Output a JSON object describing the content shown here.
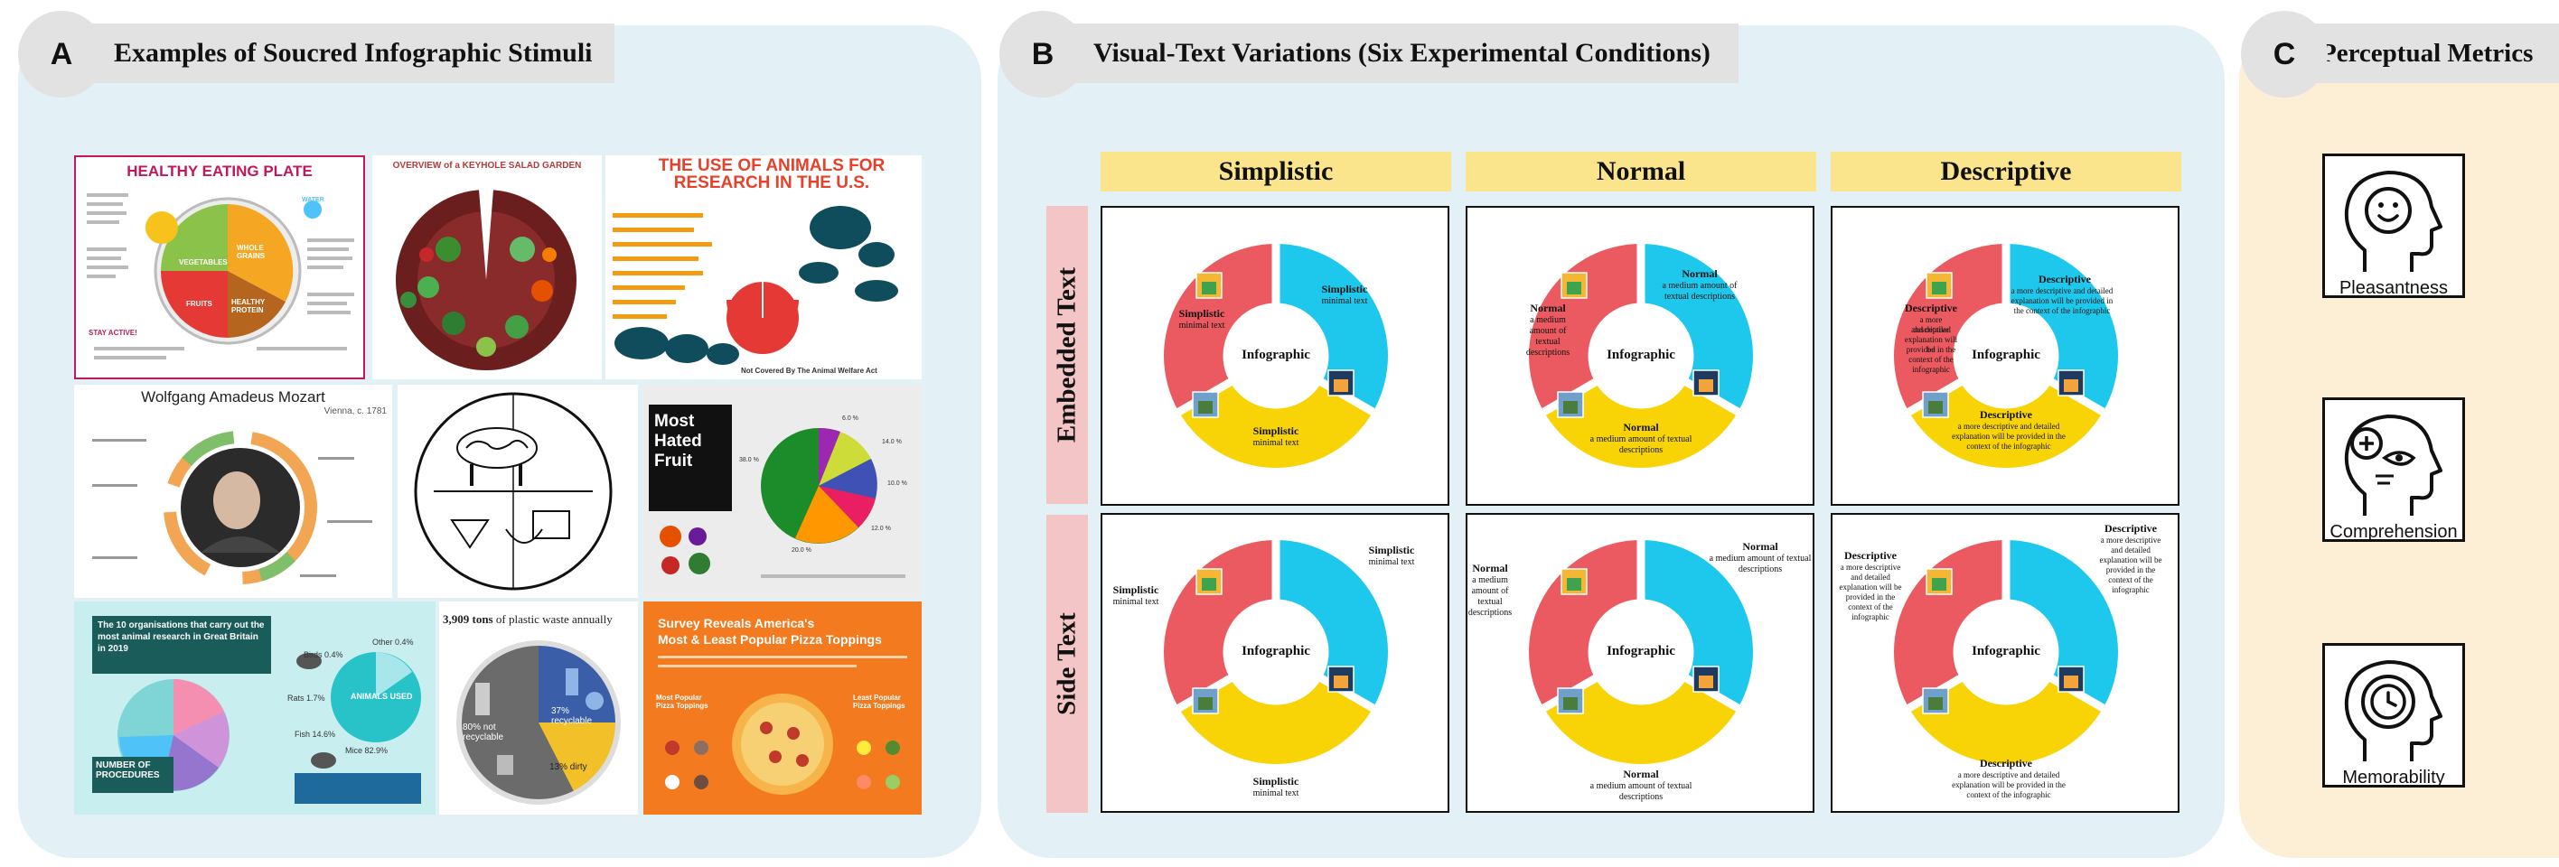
{
  "panel_a": {
    "letter": "A",
    "title": "Examples of Soucred Infographic Stimuli",
    "thumbs": {
      "eating": {
        "title": "HEALTHY EATING PLATE",
        "water": "WATER",
        "veg": "VEGETABLES",
        "grains": "WHOLE GRAINS",
        "fruits": "FRUITS",
        "protein": "HEALTHY PROTEIN",
        "stay_active": "STAY ACTIVE!"
      },
      "salad": {
        "title": "OVERVIEW of a KEYHOLE SALAD GARDEN"
      },
      "animals": {
        "title": "THE USE OF ANIMALS FOR RESEARCH IN THE U.S.",
        "footer": "Not Covered By The Animal Welfare Act"
      },
      "mozart": {
        "title": "Wolfgang Amadeus Mozart",
        "subtitle": "Vienna, c. 1781"
      },
      "fruit": {
        "title1": "Most",
        "title2": "Hated",
        "title3": "Fruit",
        "v1": "6.0 %",
        "v2": "14.0 %",
        "v3": "10.0 %",
        "v4": "12.0 %",
        "v5": "20.0 %",
        "v6": "38.0 %"
      },
      "orgs": {
        "title": "The 10 organisations that carry out the most animal research in Great Britain in 2019",
        "badge": "ANIMALS USED",
        "procedures": "NUMBER OF PROCEDURES",
        "mice": "Mice 82.9%",
        "fish": "Fish 14.6%",
        "rats": "Rats 1.7%",
        "birds": "Birds 0.4%",
        "other": "Other 0.4%"
      },
      "plastic": {
        "title_num": "3,909 tons",
        "title_rest": " of plastic waste annually",
        "a": "80% not recyclable",
        "b": "37% recyclable",
        "c": "13% dirty"
      },
      "pizza": {
        "title1": "Survey Reveals America's",
        "title2": "Most & Least Popular Pizza Toppings",
        "most": "Most Popular Pizza Toppings",
        "least": "Least Popular Pizza Toppings"
      }
    }
  },
  "panel_b": {
    "letter": "B",
    "title": "Visual-Text Variations (Six Experimental Conditions)",
    "columns": [
      "Simplistic",
      "Normal",
      "Descriptive"
    ],
    "rows": [
      "Embedded Text",
      "Side Text"
    ],
    "center_label": "Infographic",
    "text": {
      "simplistic": {
        "head": "Simplistic",
        "body": "minimal text"
      },
      "normal": {
        "head": "Normal",
        "body": "a medium amount of textual descriptions",
        "narrow1": "a medium",
        "narrow2": "amount of",
        "narrow3": "textual",
        "narrow4": "descriptions"
      },
      "descriptive": {
        "head": "Descriptive",
        "body": "a more descriptive and detailed explanation will be provided in the context of the infographic",
        "n1": "a more descriptive",
        "n2": "and detailed",
        "n3": "explanation will be",
        "n4": "provided in the",
        "n5": "context of the",
        "n6": "infographic"
      }
    },
    "colors": {
      "red": "#ea5a60",
      "cyan": "#1ec8ec",
      "yellow": "#f8d407"
    }
  },
  "panel_c": {
    "letter": "C",
    "title": "Perceptual Metrics",
    "metrics": [
      "Pleasantness",
      "Comprehension",
      "Memorability"
    ]
  }
}
